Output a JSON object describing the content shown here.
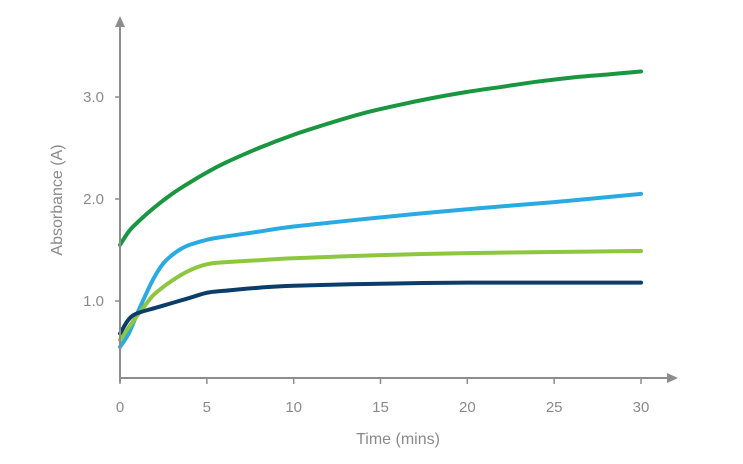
{
  "chart_data": {
    "type": "line",
    "title": "",
    "xlabel": "Time (mins)",
    "ylabel": "Absorbance (A)",
    "xlim": [
      0,
      30
    ],
    "ylim": [
      0,
      3.8
    ],
    "x_ticks": [
      0,
      5,
      10,
      15,
      20,
      25,
      30
    ],
    "y_ticks": [
      1.0,
      2.0,
      3.0
    ],
    "x_tick_labels": [
      "0",
      "5",
      "10",
      "15",
      "20",
      "25",
      "30"
    ],
    "y_tick_labels": [
      "1.0",
      "2.0",
      "3.0"
    ],
    "grid": false,
    "legend": "none",
    "series": [
      {
        "color": "#1a9641",
        "x": [
          0,
          0.5,
          1,
          2,
          3,
          4,
          5,
          6,
          8,
          10,
          12,
          14,
          16,
          18,
          20,
          22,
          24,
          26,
          28,
          30
        ],
        "y": [
          1.55,
          1.68,
          1.77,
          1.92,
          2.05,
          2.16,
          2.26,
          2.35,
          2.5,
          2.63,
          2.74,
          2.84,
          2.92,
          2.99,
          3.05,
          3.1,
          3.15,
          3.19,
          3.22,
          3.25
        ]
      },
      {
        "color": "#29abe2",
        "x": [
          0,
          0.5,
          1,
          1.5,
          2,
          2.5,
          3,
          3.5,
          4,
          5,
          6,
          8,
          10,
          15,
          20,
          25,
          30
        ],
        "y": [
          0.55,
          0.68,
          0.88,
          1.07,
          1.24,
          1.37,
          1.45,
          1.51,
          1.55,
          1.6,
          1.63,
          1.68,
          1.73,
          1.82,
          1.9,
          1.97,
          2.05
        ]
      },
      {
        "color": "#8dc63f",
        "x": [
          0,
          0.5,
          1,
          1.5,
          2,
          3,
          4,
          5,
          6,
          8,
          10,
          15,
          20,
          25,
          30
        ],
        "y": [
          0.62,
          0.74,
          0.86,
          0.97,
          1.07,
          1.2,
          1.3,
          1.36,
          1.38,
          1.4,
          1.42,
          1.45,
          1.47,
          1.48,
          1.49
        ]
      },
      {
        "color": "#0b3d6b",
        "x": [
          0,
          0.5,
          1,
          2,
          3,
          4,
          5,
          6,
          8,
          10,
          15,
          20,
          25,
          30
        ],
        "y": [
          0.68,
          0.82,
          0.88,
          0.93,
          0.98,
          1.03,
          1.08,
          1.1,
          1.13,
          1.15,
          1.17,
          1.18,
          1.18,
          1.18
        ]
      }
    ]
  }
}
